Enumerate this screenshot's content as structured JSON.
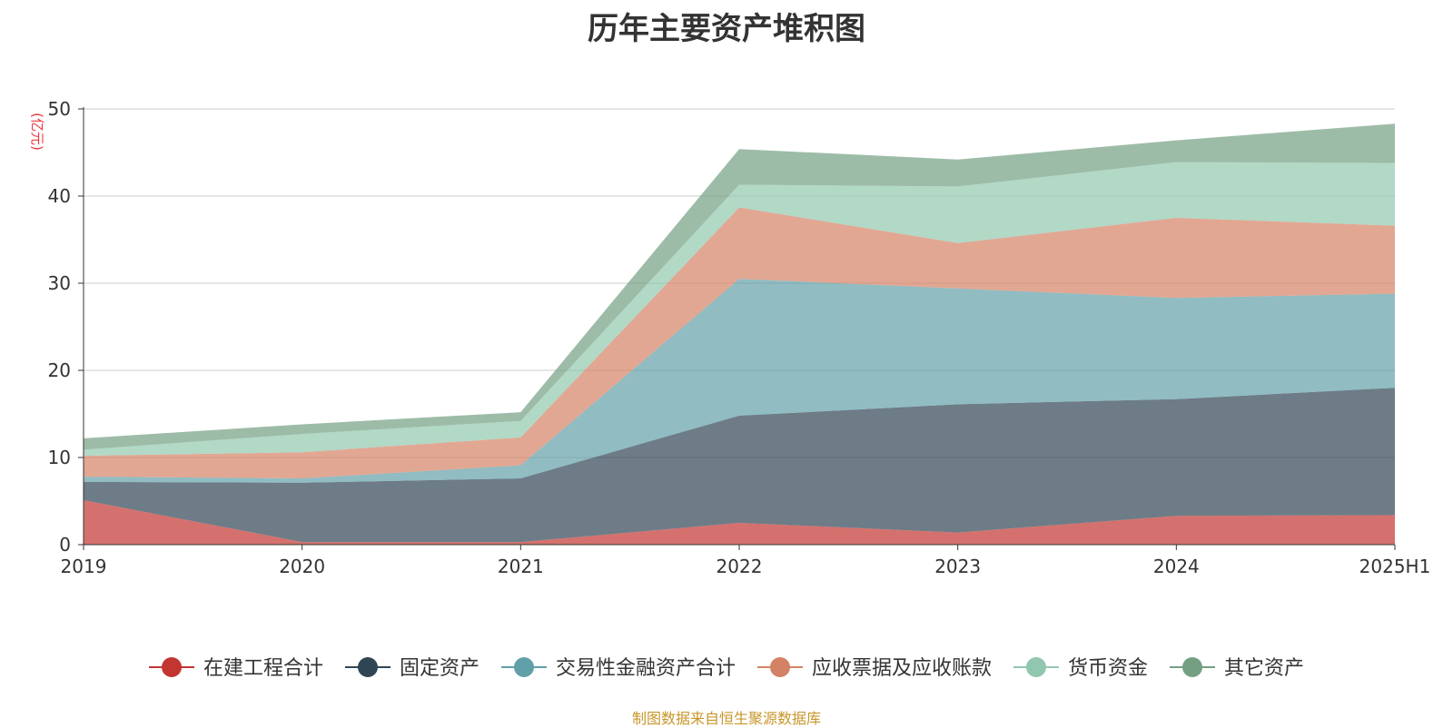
{
  "chart_data": {
    "type": "area",
    "stacked": true,
    "title": "历年主要资产堆积图",
    "unit_label": "(亿元)",
    "categories": [
      "2019",
      "2020",
      "2021",
      "2022",
      "2023",
      "2024",
      "2025H1"
    ],
    "ylim": [
      0,
      50
    ],
    "yticks": [
      0,
      10,
      20,
      30,
      40,
      50
    ],
    "grid": true,
    "legend_position": "bottom",
    "series": [
      {
        "name": "在建工程合计",
        "color": "#c23531",
        "values": [
          5.1,
          0.3,
          0.3,
          2.5,
          1.4,
          3.3,
          3.4
        ]
      },
      {
        "name": "固定资产",
        "color": "#2f4554",
        "values": [
          2.1,
          6.8,
          7.3,
          12.3,
          14.7,
          13.4,
          14.6
        ]
      },
      {
        "name": "交易性金融资产合计",
        "color": "#61a0a8",
        "values": [
          0.6,
          0.5,
          1.5,
          15.7,
          13.3,
          11.6,
          10.8
        ]
      },
      {
        "name": "应收票据及应收账款",
        "color": "#d48265",
        "values": [
          2.4,
          3.0,
          3.2,
          8.2,
          5.2,
          9.2,
          7.8
        ]
      },
      {
        "name": "货币资金",
        "color": "#91c7ae",
        "values": [
          0.7,
          2.1,
          1.9,
          2.6,
          6.5,
          6.4,
          7.2
        ]
      },
      {
        "name": "其它资产",
        "color": "#749f83",
        "values": [
          1.3,
          1.1,
          1.0,
          4.1,
          3.1,
          2.5,
          4.5
        ]
      }
    ]
  },
  "source_note": "制图数据来自恒生聚源数据库",
  "colors": {
    "title": "#333333",
    "unit_label": "#e8383d",
    "source_note": "#c8962a",
    "grid": "#cccccc",
    "axis": "#333333"
  }
}
